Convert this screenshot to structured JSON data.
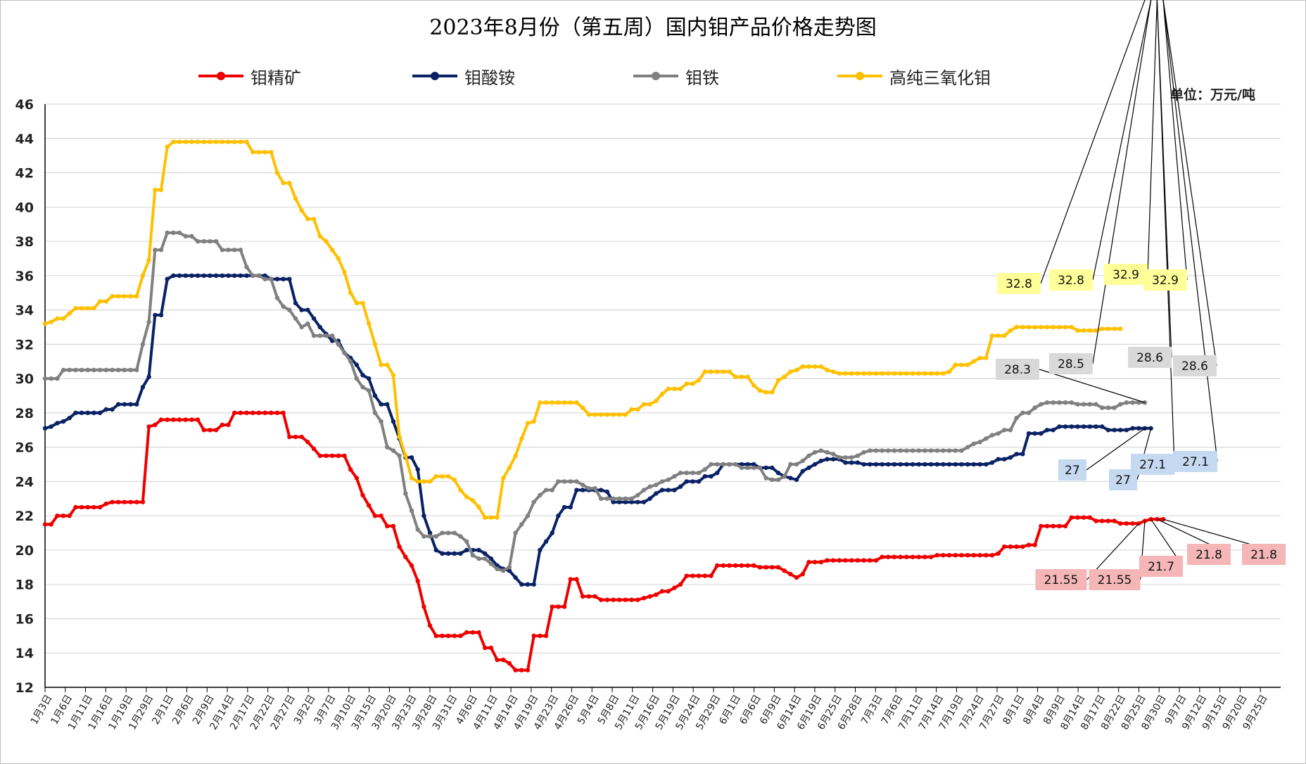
{
  "chart_data": {
    "type": "line",
    "title": "2023年8月份（第五周）国内钼产品价格走势图",
    "unit": "单位：万元/吨",
    "ylim": [
      12,
      46
    ],
    "yticks": [
      12,
      14,
      16,
      18,
      20,
      22,
      24,
      26,
      28,
      30,
      32,
      34,
      36,
      38,
      40,
      42,
      44,
      46
    ],
    "grid": "horizontal",
    "legend_position": "top",
    "x_tick_labels": [
      "1月3日",
      "1月6日",
      "1月11日",
      "1月16日",
      "1月19日",
      "1月29日",
      "2月1日",
      "2月6日",
      "2月9日",
      "2月14日",
      "2月17日",
      "2月22日",
      "2月27日",
      "3月2日",
      "3月7日",
      "3月10日",
      "3月15日",
      "3月20日",
      "3月23日",
      "3月28日",
      "3月31日",
      "4月6日",
      "4月11日",
      "4月14日",
      "4月19日",
      "4月23日",
      "4月26日",
      "5月4日",
      "5月8日",
      "5月11日",
      "5月16日",
      "5月19日",
      "5月24日",
      "5月29日",
      "6月1日",
      "6月6日",
      "6月9日",
      "6月14日",
      "6月19日",
      "6月25日",
      "6月28日",
      "7月3日",
      "7月6日",
      "7月11日",
      "7月14日",
      "7月19日",
      "7月24日",
      "7月27日",
      "8月1日",
      "8月4日",
      "8月9日",
      "8月14日",
      "8月17日",
      "8月22日",
      "8月25日",
      "8月30日",
      "9月7日",
      "9月12日",
      "9月15日",
      "9月20日",
      "9月25日"
    ],
    "series": [
      {
        "name": "钼精矿",
        "color": "#ee0000",
        "values": [
          21.5,
          21.5,
          22,
          22,
          22,
          22.5,
          22.5,
          22.5,
          22.5,
          22.5,
          22.7,
          22.8,
          22.8,
          22.8,
          22.8,
          22.8,
          22.8,
          27.2,
          27.3,
          27.6,
          27.6,
          27.6,
          27.6,
          27.6,
          27.6,
          27.6,
          27,
          27,
          27,
          27.3,
          27.3,
          28,
          28,
          28,
          28,
          28,
          28,
          28,
          28,
          28,
          26.6,
          26.6,
          26.6,
          26.3,
          25.9,
          25.5,
          25.5,
          25.5,
          25.5,
          25.5,
          24.7,
          24.2,
          23.2,
          22.6,
          22,
          22,
          21.4,
          21.4,
          20.2,
          19.6,
          19.1,
          18.2,
          16.7,
          15.6,
          15,
          15,
          15,
          15,
          15,
          15.2,
          15.2,
          15.2,
          14.3,
          14.3,
          13.6,
          13.6,
          13.4,
          13,
          13,
          13,
          15,
          15,
          15,
          16.7,
          16.7,
          16.7,
          18.3,
          18.3,
          17.3,
          17.3,
          17.3,
          17.1,
          17.1,
          17.1,
          17.1,
          17.1,
          17.1,
          17.1,
          17.2,
          17.3,
          17.4,
          17.6,
          17.6,
          17.8,
          18,
          18.5,
          18.5,
          18.5,
          18.5,
          18.5,
          19.1,
          19.1,
          19.1,
          19.1,
          19.1,
          19.1,
          19.1,
          19,
          19,
          19,
          19,
          18.8,
          18.6,
          18.4,
          18.6,
          19.3,
          19.3,
          19.3,
          19.4,
          19.4,
          19.4,
          19.4,
          19.4,
          19.4,
          19.4,
          19.4,
          19.4,
          19.6,
          19.6,
          19.6,
          19.6,
          19.6,
          19.6,
          19.6,
          19.6,
          19.6,
          19.7,
          19.7,
          19.7,
          19.7,
          19.7,
          19.7,
          19.7,
          19.7,
          19.7,
          19.7,
          19.8,
          20.2,
          20.2,
          20.2,
          20.2,
          20.3,
          20.3,
          21.4,
          21.4,
          21.4,
          21.4,
          21.4,
          21.9,
          21.9,
          21.9,
          21.9,
          21.7,
          21.7,
          21.7,
          21.7,
          21.55,
          21.55,
          21.55,
          21.55,
          21.7,
          21.8,
          21.8,
          21.8
        ],
        "callouts": [
          "21.55",
          "21.55",
          "21.7",
          "21.8",
          "21.8"
        ]
      },
      {
        "name": "钼酸铵",
        "color": "#0a2264",
        "values": [
          27.1,
          27.2,
          27.4,
          27.5,
          27.7,
          28,
          28,
          28,
          28,
          28,
          28.2,
          28.2,
          28.5,
          28.5,
          28.5,
          28.5,
          29.5,
          30.1,
          33.7,
          33.7,
          35.8,
          36,
          36,
          36,
          36,
          36,
          36,
          36,
          36,
          36,
          36,
          36,
          36,
          36,
          36,
          36,
          36,
          35.8,
          35.8,
          35.8,
          35.8,
          34.4,
          34,
          34,
          33.5,
          33,
          32.6,
          32.2,
          32.2,
          31.5,
          31.2,
          30.8,
          30.2,
          30,
          29,
          28.5,
          28.5,
          27.5,
          26.5,
          25.4,
          25.4,
          24.7,
          22,
          21,
          20,
          19.8,
          19.8,
          19.8,
          19.8,
          20,
          20,
          20,
          19.8,
          19.5,
          19.1,
          18.9,
          18.8,
          18.4,
          18,
          18,
          18,
          20,
          20.5,
          21,
          22,
          22.5,
          22.5,
          23.5,
          23.5,
          23.5,
          23.5,
          23.5,
          23.4,
          22.8,
          22.8,
          22.8,
          22.8,
          22.8,
          22.8,
          23,
          23.3,
          23.5,
          23.5,
          23.5,
          23.7,
          24,
          24,
          24,
          24.3,
          24.3,
          24.5,
          25,
          25,
          25,
          25,
          25,
          25,
          24.8,
          24.8,
          24.8,
          24.5,
          24.3,
          24.2,
          24.1,
          24.6,
          24.8,
          25,
          25.2,
          25.3,
          25.3,
          25.3,
          25.1,
          25.1,
          25.1,
          25,
          25,
          25,
          25,
          25,
          25,
          25,
          25,
          25,
          25,
          25,
          25,
          25,
          25,
          25,
          25,
          25,
          25,
          25,
          25,
          25,
          25.1,
          25.3,
          25.3,
          25.4,
          25.6,
          25.6,
          26.8,
          26.8,
          26.8,
          27,
          27,
          27.2,
          27.2,
          27.2,
          27.2,
          27.2,
          27.2,
          27.2,
          27.2,
          27,
          27,
          27,
          27,
          27.1,
          27.1,
          27.1,
          27.1
        ],
        "callouts": [
          "27",
          "27",
          "27.1",
          "27.1"
        ]
      },
      {
        "name": "钼铁",
        "color": "#808080",
        "values": [
          30,
          30,
          30,
          30.5,
          30.5,
          30.5,
          30.5,
          30.5,
          30.5,
          30.5,
          30.5,
          30.5,
          30.5,
          30.5,
          30.5,
          30.5,
          32,
          33.3,
          37.5,
          37.5,
          38.5,
          38.5,
          38.5,
          38.3,
          38.3,
          38,
          38,
          38,
          38,
          37.5,
          37.5,
          37.5,
          37.5,
          36.5,
          36,
          36,
          35.8,
          35.8,
          34.7,
          34.2,
          34,
          33.5,
          33,
          33.2,
          32.5,
          32.5,
          32.5,
          32.5,
          32,
          31.5,
          31,
          30,
          29.5,
          29.3,
          28,
          27.5,
          26,
          25.8,
          25.5,
          23.3,
          22.3,
          21.2,
          20.8,
          20.8,
          20.8,
          21,
          21,
          21,
          20.8,
          20.5,
          19.7,
          19.5,
          19.5,
          19.2,
          18.9,
          18.8,
          19,
          21,
          21.5,
          22,
          22.8,
          23.2,
          23.5,
          23.5,
          24,
          24,
          24,
          24,
          23.8,
          23.6,
          23.6,
          23,
          23,
          23,
          23,
          23,
          23,
          23.2,
          23.5,
          23.7,
          23.8,
          24,
          24.1,
          24.3,
          24.5,
          24.5,
          24.5,
          24.5,
          24.7,
          25,
          25,
          25,
          25,
          25,
          24.8,
          24.8,
          24.8,
          24.8,
          24.2,
          24.1,
          24.1,
          24.3,
          25,
          25,
          25.2,
          25.5,
          25.7,
          25.8,
          25.7,
          25.6,
          25.4,
          25.4,
          25.4,
          25.5,
          25.7,
          25.8,
          25.8,
          25.8,
          25.8,
          25.8,
          25.8,
          25.8,
          25.8,
          25.8,
          25.8,
          25.8,
          25.8,
          25.8,
          25.8,
          25.8,
          25.8,
          26,
          26.2,
          26.3,
          26.5,
          26.7,
          26.8,
          27,
          27,
          27.7,
          28,
          28,
          28.3,
          28.5,
          28.6,
          28.6,
          28.6,
          28.6,
          28.6,
          28.5,
          28.5,
          28.5,
          28.5,
          28.3,
          28.3,
          28.3,
          28.5,
          28.6,
          28.6,
          28.6,
          28.6
        ],
        "callouts": [
          "28.3",
          "28.5",
          "28.6",
          "28.6"
        ]
      },
      {
        "name": "高纯三氧化钼",
        "color": "#ffc000",
        "values": [
          33.2,
          33.3,
          33.5,
          33.5,
          33.8,
          34.1,
          34.1,
          34.1,
          34.1,
          34.5,
          34.5,
          34.8,
          34.8,
          34.8,
          34.8,
          34.8,
          36,
          36.9,
          41,
          41,
          43.5,
          43.8,
          43.8,
          43.8,
          43.8,
          43.8,
          43.8,
          43.8,
          43.8,
          43.8,
          43.8,
          43.8,
          43.8,
          43.8,
          43.2,
          43.2,
          43.2,
          43.2,
          42,
          41.4,
          41.4,
          40.5,
          39.8,
          39.3,
          39.3,
          38.3,
          38,
          37.5,
          37,
          36.2,
          35,
          34.4,
          34.4,
          33.2,
          32,
          30.8,
          30.8,
          30.2,
          26.6,
          25.5,
          24.2,
          24,
          24,
          24,
          24.3,
          24.3,
          24.3,
          24.1,
          23.5,
          23.1,
          22.9,
          22.5,
          21.9,
          21.9,
          21.9,
          24.2,
          24.8,
          25.5,
          26.5,
          27.4,
          27.5,
          28.6,
          28.6,
          28.6,
          28.6,
          28.6,
          28.6,
          28.6,
          28.3,
          27.9,
          27.9,
          27.9,
          27.9,
          27.9,
          27.9,
          27.9,
          28.2,
          28.2,
          28.5,
          28.5,
          28.7,
          29.1,
          29.4,
          29.4,
          29.4,
          29.7,
          29.7,
          29.9,
          30.4,
          30.4,
          30.4,
          30.4,
          30.4,
          30.1,
          30.1,
          30.1,
          29.6,
          29.3,
          29.2,
          29.2,
          29.9,
          30.1,
          30.4,
          30.5,
          30.7,
          30.7,
          30.7,
          30.7,
          30.5,
          30.4,
          30.3,
          30.3,
          30.3,
          30.3,
          30.3,
          30.3,
          30.3,
          30.3,
          30.3,
          30.3,
          30.3,
          30.3,
          30.3,
          30.3,
          30.3,
          30.3,
          30.3,
          30.3,
          30.4,
          30.8,
          30.8,
          30.8,
          31,
          31.2,
          31.2,
          32.5,
          32.5,
          32.5,
          32.8,
          33,
          33,
          33,
          33,
          33,
          33,
          33,
          33,
          33,
          33,
          32.8,
          32.8,
          32.8,
          32.8,
          32.9,
          32.9,
          32.9,
          32.9
        ],
        "callouts": [
          "32.8",
          "32.8",
          "32.9",
          "32.9"
        ]
      }
    ]
  }
}
